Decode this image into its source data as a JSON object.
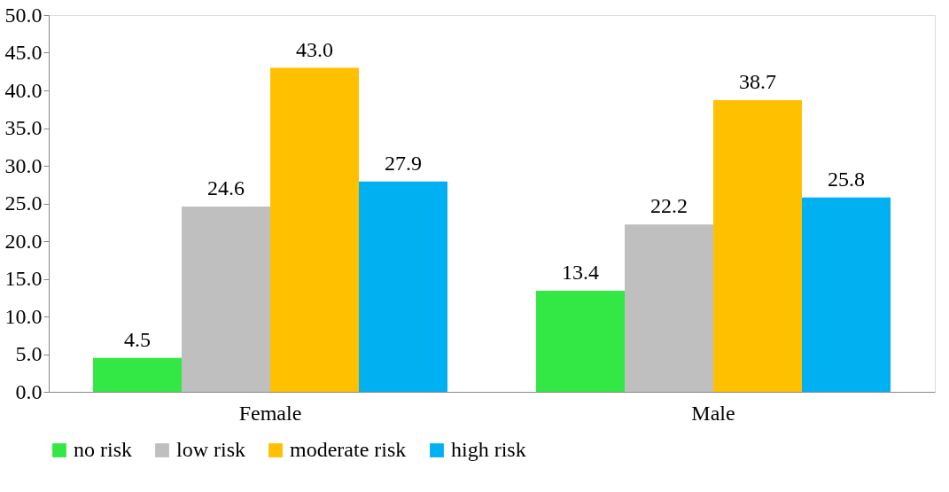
{
  "chart_data": {
    "type": "bar",
    "categories": [
      "Female",
      "Male"
    ],
    "series": [
      {
        "name": "no risk",
        "color": "#33e844",
        "values": [
          4.5,
          13.4
        ],
        "value_labels": [
          "4.5",
          "13.4"
        ]
      },
      {
        "name": "low risk",
        "color": "#bfbfbf",
        "values": [
          24.6,
          22.2
        ],
        "value_labels": [
          "24.6",
          "22.2"
        ]
      },
      {
        "name": "moderate risk",
        "color": "#ffc000",
        "values": [
          43.0,
          38.7
        ],
        "value_labels": [
          "43.0",
          "38.7"
        ]
      },
      {
        "name": "high risk",
        "color": "#00b0f0",
        "values": [
          27.9,
          25.8
        ],
        "value_labels": [
          "27.9",
          "25.8"
        ]
      }
    ],
    "ylim": [
      0,
      50
    ],
    "yticks": [
      {
        "value": 0,
        "label": "0.0"
      },
      {
        "value": 5,
        "label": "5.0"
      },
      {
        "value": 10,
        "label": "10.0"
      },
      {
        "value": 15,
        "label": "15.0"
      },
      {
        "value": 20,
        "label": "20.0"
      },
      {
        "value": 25,
        "label": "25.0"
      },
      {
        "value": 30,
        "label": "30.0"
      },
      {
        "value": 35,
        "label": "35.0"
      },
      {
        "value": 40,
        "label": "40.0"
      },
      {
        "value": 45,
        "label": "45.0"
      },
      {
        "value": 50,
        "label": "50.0"
      }
    ],
    "grid": false,
    "legend": "bottom"
  }
}
